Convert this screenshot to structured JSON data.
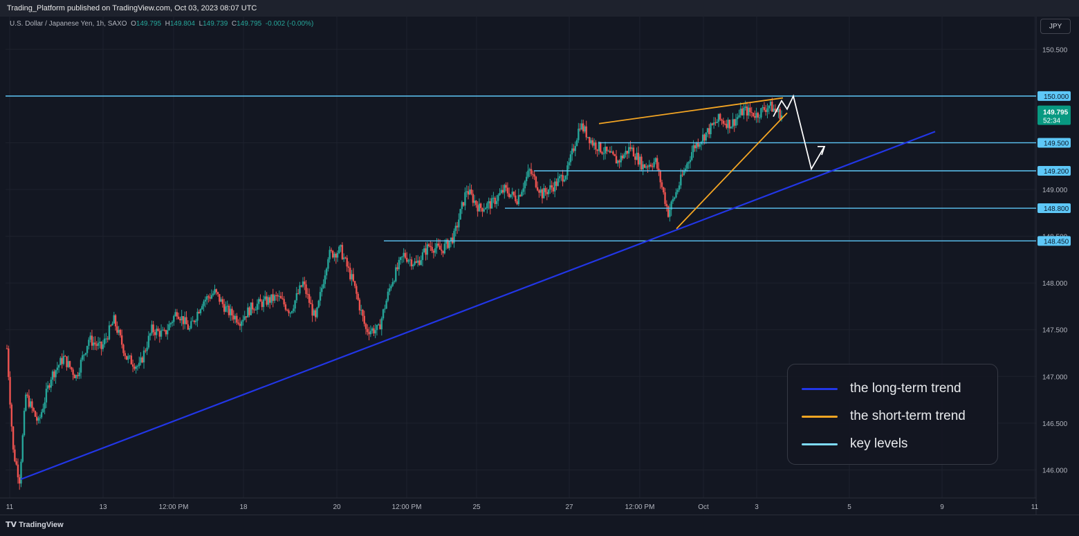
{
  "header": {
    "publish_text": "Trading_Platform published on TradingView.com, Oct 03, 2023 08:07 UTC"
  },
  "symbol": {
    "name": "U.S. Dollar / Japanese Yen, 1h, SAXO",
    "open_label": "O",
    "open": "149.795",
    "high_label": "H",
    "high": "149.804",
    "low_label": "L",
    "low": "149.739",
    "close_label": "C",
    "close": "149.795",
    "change": "-0.002 (-0.00%)"
  },
  "currency_button": "JPY",
  "price_axis": {
    "ticks": [
      "150.500",
      "150.000",
      "149.500",
      "149.000",
      "148.500",
      "148.000",
      "147.500",
      "147.000",
      "146.500",
      "146.000"
    ],
    "level_tags": [
      "150.000",
      "149.500",
      "149.200",
      "148.800",
      "148.450"
    ],
    "last_price": "149.795",
    "countdown": "52:34"
  },
  "time_axis": {
    "ticks": [
      "11",
      "13",
      "12:00 PM",
      "18",
      "20",
      "12:00 PM",
      "25",
      "27",
      "12:00 PM",
      "Oct",
      "3",
      "5",
      "9",
      "11"
    ]
  },
  "legend": {
    "items": [
      {
        "label": "the long-term trend",
        "color": "#2236e6"
      },
      {
        "label": "the short-term trend",
        "color": "#f5a623"
      },
      {
        "label": "key levels",
        "color": "#7fdcff"
      }
    ]
  },
  "chart_data": {
    "type": "candlestick",
    "title": "U.S. Dollar / Japanese Yen, 1h, SAXO",
    "ylim": [
      145.7,
      150.85
    ],
    "key_levels": [
      150.0,
      149.5,
      149.2,
      148.8,
      148.45
    ],
    "last_price": 149.795,
    "price_path": [
      [
        0,
        147.3
      ],
      [
        2,
        146.2
      ],
      [
        4,
        145.9
      ],
      [
        6,
        146.8
      ],
      [
        10,
        146.5
      ],
      [
        14,
        147.0
      ],
      [
        18,
        147.2
      ],
      [
        22,
        147.0
      ],
      [
        26,
        147.4
      ],
      [
        30,
        147.3
      ],
      [
        34,
        147.6
      ],
      [
        38,
        147.2
      ],
      [
        42,
        147.1
      ],
      [
        46,
        147.5
      ],
      [
        50,
        147.45
      ],
      [
        54,
        147.7
      ],
      [
        58,
        147.5
      ],
      [
        62,
        147.8
      ],
      [
        66,
        147.9
      ],
      [
        70,
        147.7
      ],
      [
        74,
        147.6
      ],
      [
        78,
        147.75
      ],
      [
        82,
        147.8
      ],
      [
        86,
        147.85
      ],
      [
        90,
        147.7
      ],
      [
        94,
        148.0
      ],
      [
        98,
        147.6
      ],
      [
        102,
        148.3
      ],
      [
        106,
        148.35
      ],
      [
        110,
        148.0
      ],
      [
        114,
        147.5
      ],
      [
        118,
        147.5
      ],
      [
        122,
        148.0
      ],
      [
        126,
        148.3
      ],
      [
        130,
        148.2
      ],
      [
        134,
        148.4
      ],
      [
        138,
        148.35
      ],
      [
        142,
        148.5
      ],
      [
        146,
        149.0
      ],
      [
        150,
        148.8
      ],
      [
        154,
        148.85
      ],
      [
        158,
        149.0
      ],
      [
        162,
        148.9
      ],
      [
        166,
        149.2
      ],
      [
        170,
        148.95
      ],
      [
        174,
        149.05
      ],
      [
        178,
        149.2
      ],
      [
        182,
        149.7
      ],
      [
        186,
        149.5
      ],
      [
        190,
        149.4
      ],
      [
        194,
        149.3
      ],
      [
        198,
        149.45
      ],
      [
        202,
        149.25
      ],
      [
        206,
        149.3
      ],
      [
        210,
        148.75
      ],
      [
        214,
        149.1
      ],
      [
        218,
        149.45
      ],
      [
        222,
        149.6
      ],
      [
        226,
        149.75
      ],
      [
        230,
        149.7
      ],
      [
        234,
        149.85
      ],
      [
        238,
        149.8
      ],
      [
        242,
        149.9
      ],
      [
        246,
        149.795
      ]
    ],
    "trendlines": [
      {
        "name": "long-term trend",
        "points": [
          [
            "Sep 11",
            145.9
          ],
          [
            "Oct 8",
            149.6
          ]
        ]
      },
      {
        "name": "short-term trend upper",
        "points": [
          [
            "Sep 28",
            149.7
          ],
          [
            "Oct 3",
            149.98
          ]
        ]
      },
      {
        "name": "short-term trend lower",
        "points": [
          [
            "Sep 29",
            148.58
          ],
          [
            "Oct 3",
            149.8
          ]
        ]
      }
    ],
    "projection": [
      [
        149.78
      ],
      [
        149.95
      ],
      [
        149.85
      ],
      [
        150.0
      ],
      [
        149.2
      ],
      [
        149.45
      ]
    ]
  },
  "watermark": "TradingView"
}
